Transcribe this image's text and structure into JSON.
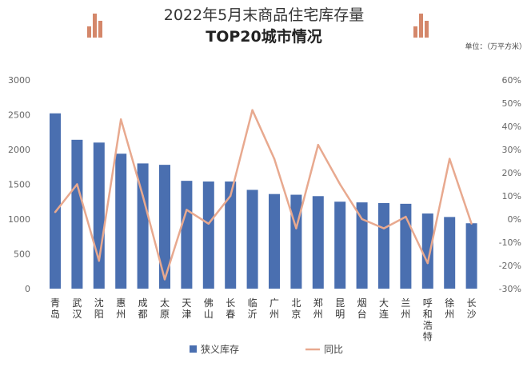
{
  "header": {
    "title_line1": "2022年5月末商品住宅库存量",
    "title_line2": "TOP20城市情况",
    "unit": "单位：（万平方米）"
  },
  "icons": {
    "left": "bar-chart-icon",
    "right": "bar-chart-icon",
    "accent": "#d4876a"
  },
  "chart_data": {
    "type": "bar+line",
    "categories": [
      "青岛",
      "武汉",
      "沈阳",
      "惠州",
      "成都",
      "太原",
      "天津",
      "佛山",
      "长春",
      "临沂",
      "广州",
      "北京",
      "郑州",
      "昆明",
      "烟台",
      "大连",
      "兰州",
      "呼和浩特",
      "徐州",
      "长沙"
    ],
    "series": [
      {
        "name": "狭义库存",
        "type": "bar",
        "axis": "left",
        "color": "#4a6fb0",
        "values": [
          2520,
          2140,
          2100,
          1940,
          1800,
          1780,
          1550,
          1540,
          1540,
          1420,
          1360,
          1350,
          1330,
          1250,
          1240,
          1230,
          1220,
          1080,
          1030,
          940
        ]
      },
      {
        "name": "同比",
        "type": "line",
        "axis": "right",
        "color": "#e8a98f",
        "values": [
          3,
          15,
          -18,
          43,
          10,
          -26,
          4,
          -2,
          10,
          47,
          26,
          -4,
          32,
          15,
          0,
          -4,
          1,
          -19,
          26,
          -2
        ]
      }
    ],
    "y_left": {
      "min": 0,
      "max": 3000,
      "ticks": [
        "0",
        "500",
        "1000",
        "1500",
        "2000",
        "2500",
        "3000"
      ]
    },
    "y_right": {
      "min": -30,
      "max": 60,
      "ticks": [
        "-30%",
        "-20%",
        "-10%",
        "0%",
        "10%",
        "20%",
        "30%",
        "40%",
        "50%",
        "60%"
      ]
    },
    "grid": false,
    "legend": "bottom-center"
  }
}
